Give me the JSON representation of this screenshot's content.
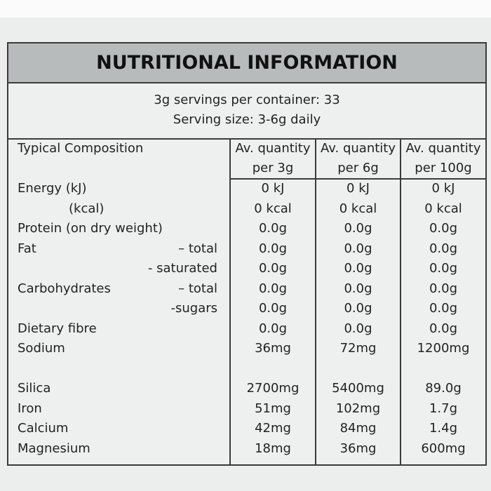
{
  "label": {
    "title": "NUTRITIONAL INFORMATION",
    "servings_per_container": "3g servings per container: 33",
    "serving_size": "Serving size: 3-6g daily",
    "table": {
      "header": {
        "composition": "Typical Composition",
        "columns": [
          {
            "line1": "Av. quantity",
            "line2": "per 3g"
          },
          {
            "line1": "Av. quantity",
            "line2": "per 6g"
          },
          {
            "line1": "Av. quantity",
            "line2": "per 100g"
          }
        ]
      },
      "sections": [
        {
          "rows": [
            {
              "label": "Energy (kJ)",
              "values": [
                "0 kJ",
                "0 kJ",
                "0 kJ"
              ]
            },
            {
              "indent_label": "(kcal)",
              "values": [
                "0 kcal",
                "0 kcal",
                "0 kcal"
              ]
            },
            {
              "label": "Protein (on dry weight)",
              "values": [
                "0.0g",
                "0.0g",
                "0.0g"
              ]
            },
            {
              "label": "Fat",
              "sublabel": "– total",
              "values": [
                "0.0g",
                "0.0g",
                "0.0g"
              ]
            },
            {
              "sublabel": "- saturated",
              "values": [
                "0.0g",
                "0.0g",
                "0.0g"
              ]
            },
            {
              "label": "Carbohydrates",
              "sublabel": "– total",
              "values": [
                "0.0g",
                "0.0g",
                "0.0g"
              ]
            },
            {
              "sublabel": "-sugars",
              "values": [
                "0.0g",
                "0.0g",
                "0.0g"
              ]
            },
            {
              "label": "Dietary fibre",
              "values": [
                "0.0g",
                "0.0g",
                "0.0g"
              ]
            },
            {
              "label": "Sodium",
              "values": [
                "36mg",
                "72mg",
                "1200mg"
              ]
            }
          ]
        },
        {
          "rows": [
            {
              "label": "Silica",
              "values": [
                "2700mg",
                "5400mg",
                "89.0g"
              ]
            },
            {
              "label": "Iron",
              "values": [
                "51mg",
                "102mg",
                "1.7g"
              ]
            },
            {
              "label": "Calcium",
              "values": [
                "42mg",
                "84mg",
                "1.4g"
              ]
            },
            {
              "label": "Magnesium",
              "values": [
                "18mg",
                "36mg",
                "600mg"
              ]
            }
          ]
        }
      ]
    }
  }
}
